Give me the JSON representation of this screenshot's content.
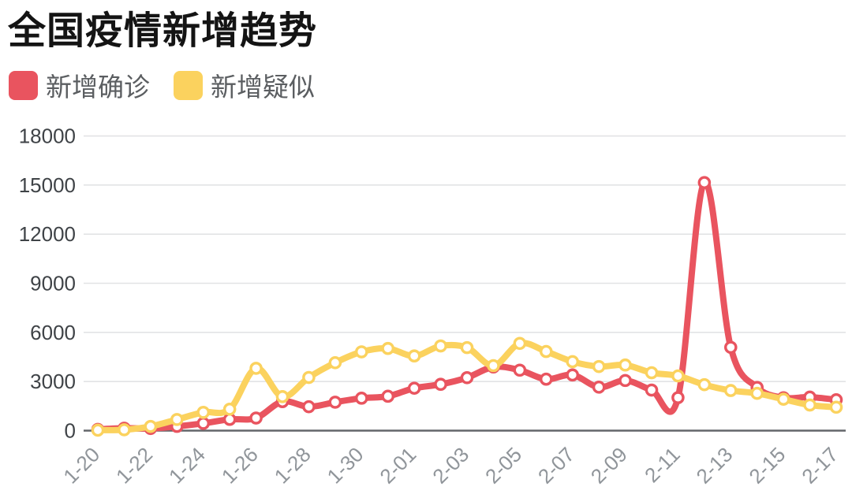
{
  "header": {
    "title": "全国疫情新增趋势"
  },
  "legend": {
    "items": [
      {
        "label": "新增确诊",
        "color": "#e9545f"
      },
      {
        "label": "新增疑似",
        "color": "#fbd25e"
      }
    ]
  },
  "chart_data": {
    "type": "line",
    "title": "全国疫情新增趋势",
    "x": [
      "1-20",
      "1-21",
      "1-22",
      "1-23",
      "1-24",
      "1-25",
      "1-26",
      "1-27",
      "1-28",
      "1-29",
      "1-30",
      "1-31",
      "2-01",
      "2-02",
      "2-03",
      "2-04",
      "2-05",
      "2-06",
      "2-07",
      "2-08",
      "2-09",
      "2-10",
      "2-11",
      "2-12",
      "2-13",
      "2-14",
      "2-15",
      "2-16",
      "2-17"
    ],
    "x_tick_labels": [
      "1-20",
      "1-22",
      "1-24",
      "1-26",
      "1-28",
      "1-30",
      "2-01",
      "2-03",
      "2-05",
      "2-07",
      "2-09",
      "2-11",
      "2-13",
      "2-15",
      "2-17"
    ],
    "x_tick_every": 2,
    "series": [
      {
        "name": "新增确诊",
        "color": "#e9545f",
        "values": [
          77,
          149,
          131,
          259,
          444,
          688,
          769,
          1771,
          1459,
          1737,
          1982,
          2102,
          2590,
          2829,
          3235,
          3887,
          3694,
          3143,
          3401,
          2656,
          3062,
          2478,
          2015,
          15152,
          5090,
          2641,
          2009,
          2048,
          1886
        ]
      },
      {
        "name": "新增疑似",
        "color": "#fbd25e",
        "values": [
          27,
          53,
          257,
          680,
          1118,
          1309,
          3806,
          2077,
          3248,
          4148,
          4812,
          5019,
          4562,
          5173,
          5072,
          3971,
          5328,
          4833,
          4214,
          3916,
          4008,
          3536,
          3342,
          2807,
          2450,
          2277,
          1918,
          1563,
          1432
        ]
      }
    ],
    "y_ticks": [
      0,
      3000,
      6000,
      9000,
      12000,
      15000,
      18000
    ],
    "ylim": [
      0,
      18000
    ],
    "grid": true,
    "smooth": true,
    "legend_position": "top-left",
    "marker": "circle-white-core"
  },
  "colors": {
    "background": "#ffffff",
    "title_text": "#141414",
    "legend_text": "#5b5e61",
    "grid_line": "#e2e3e5",
    "zero_axis_line": "#63666a",
    "y_label": "#3f4347",
    "x_label": "#90959a"
  }
}
